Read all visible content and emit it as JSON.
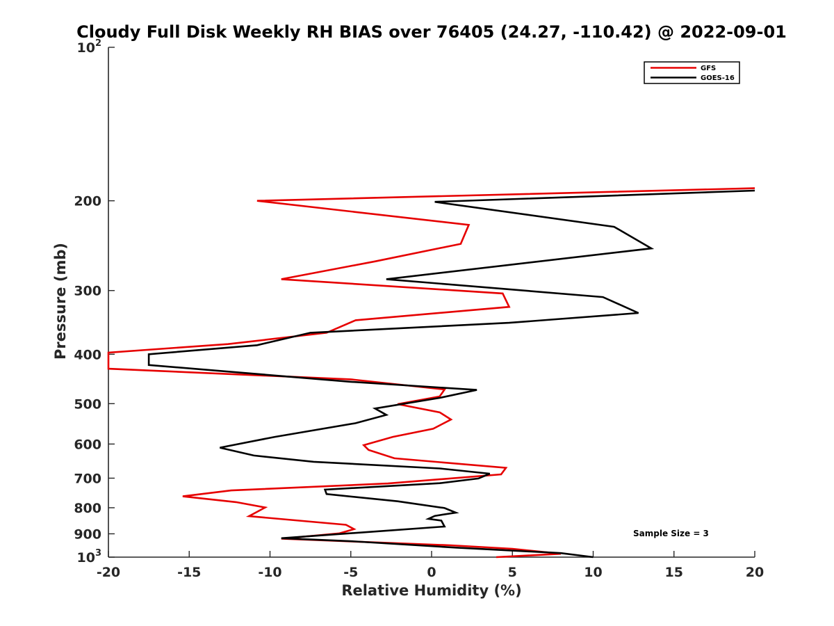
{
  "chart_data": {
    "type": "line",
    "title": "Cloudy Full Disk Weekly RH BIAS over 76405 (24.27, -110.42) @ 2022-09-01",
    "xlabel": "Relative Humidity (%)",
    "ylabel": "Pressure (mb)",
    "xlim": [
      -20,
      20
    ],
    "ylim": [
      100,
      1000
    ],
    "y_scale": "log",
    "y_reversed": true,
    "x_ticks": [
      "-20",
      "-15",
      "-10",
      "-5",
      "0",
      "5",
      "10",
      "15",
      "20"
    ],
    "y_ticks": [
      {
        "value": 100,
        "base": "10",
        "exp": "2"
      },
      {
        "value": 200,
        "label": "200"
      },
      {
        "value": 300,
        "label": "300"
      },
      {
        "value": 400,
        "label": "400"
      },
      {
        "value": 500,
        "label": "500"
      },
      {
        "value": 600,
        "label": "600"
      },
      {
        "value": 700,
        "label": "700"
      },
      {
        "value": 800,
        "label": "800"
      },
      {
        "value": 900,
        "label": "900"
      },
      {
        "value": 1000,
        "base": "10",
        "exp": "3"
      }
    ],
    "grid": false,
    "legend_position": "top-right",
    "annotation": "Sample Size = 3",
    "series": [
      {
        "name": "GFS",
        "color": "#e60000",
        "points": [
          [
            20,
            189
          ],
          [
            -10.8,
            200
          ],
          [
            2.3,
            223
          ],
          [
            1.8,
            243
          ],
          [
            -3.5,
            263
          ],
          [
            -9.3,
            285
          ],
          [
            4.4,
            304
          ],
          [
            4.8,
            323
          ],
          [
            -4.7,
            343
          ],
          [
            -6.5,
            363
          ],
          [
            -12.6,
            382
          ],
          [
            -20,
            397
          ],
          [
            -20,
            427
          ],
          [
            -5,
            448
          ],
          [
            0.8,
            469
          ],
          [
            0.5,
            484
          ],
          [
            -2.1,
            501
          ],
          [
            0.5,
            520
          ],
          [
            1.2,
            537
          ],
          [
            0.1,
            560
          ],
          [
            -2.4,
            581
          ],
          [
            -4.2,
            603
          ],
          [
            -3.9,
            616
          ],
          [
            -2.3,
            640
          ],
          [
            4.6,
            668
          ],
          [
            4.3,
            688
          ],
          [
            -2.7,
            717
          ],
          [
            -12.4,
            740
          ],
          [
            -15.4,
            760
          ],
          [
            -12.1,
            780
          ],
          [
            -10.3,
            799
          ],
          [
            -10.8,
            815
          ],
          [
            -11.3,
            831
          ],
          [
            -5.3,
            864
          ],
          [
            -4.8,
            881
          ],
          [
            -5.7,
            898
          ],
          [
            -9.3,
            920
          ],
          [
            1.2,
            948
          ],
          [
            5,
            963
          ],
          [
            8,
            985
          ],
          [
            4,
            1000
          ]
        ]
      },
      {
        "name": "GOES-16",
        "color": "#000000",
        "points": [
          [
            20,
            191
          ],
          [
            0.2,
            201
          ],
          [
            11.3,
            225
          ],
          [
            13.6,
            248
          ],
          [
            -2.8,
            285
          ],
          [
            10.6,
            309
          ],
          [
            12.8,
            332
          ],
          [
            4.8,
            347
          ],
          [
            -7.5,
            363
          ],
          [
            -10.8,
            384
          ],
          [
            -17.5,
            400
          ],
          [
            -17.5,
            420
          ],
          [
            -5,
            453
          ],
          [
            2.8,
            470
          ],
          [
            0.5,
            487
          ],
          [
            -3.5,
            511
          ],
          [
            -2.8,
            526
          ],
          [
            -4.7,
            546
          ],
          [
            -9.7,
            581
          ],
          [
            -13.1,
            610
          ],
          [
            -11,
            632
          ],
          [
            -7.3,
            650
          ],
          [
            0.5,
            670
          ],
          [
            3.6,
            686
          ],
          [
            2.9,
            701
          ],
          [
            0.5,
            716
          ],
          [
            -6.6,
            737
          ],
          [
            -6.5,
            752
          ],
          [
            -2.1,
            777
          ],
          [
            0.8,
            801
          ],
          [
            1.5,
            818
          ],
          [
            0.2,
            830
          ],
          [
            -0.2,
            841
          ],
          [
            0.6,
            848
          ],
          [
            0.8,
            871
          ],
          [
            -9.3,
            918
          ],
          [
            -4.9,
            931
          ],
          [
            1.5,
            958
          ],
          [
            8,
            982
          ],
          [
            10,
            1000
          ]
        ]
      }
    ]
  }
}
